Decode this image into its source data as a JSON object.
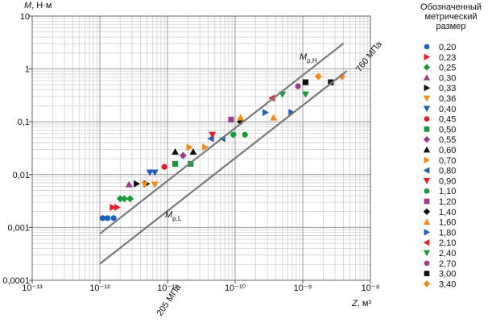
{
  "chart_data": {
    "type": "scatter",
    "xlabel": {
      "symbol": "Z",
      "unit": ", м³"
    },
    "ylabel": {
      "symbol": "M",
      "unit": ", Н·м"
    },
    "xscale": "log",
    "yscale": "log",
    "grid": true,
    "minor_grid": true,
    "xlim": [
      1e-13,
      1e-08
    ],
    "ylim": [
      0.0001,
      10
    ],
    "xticks": [
      {
        "value": 1e-13,
        "label": "10⁻¹³"
      },
      {
        "value": 1e-12,
        "label": "10⁻¹²"
      },
      {
        "value": 1e-11,
        "label": "10⁻¹¹"
      },
      {
        "value": 1e-10,
        "label": "10⁻¹⁰"
      },
      {
        "value": 1e-09,
        "label": "10⁻⁹"
      },
      {
        "value": 1e-08,
        "label": "10⁻⁸"
      }
    ],
    "yticks": [
      {
        "value": 0.0001,
        "label": "0,0001"
      },
      {
        "value": 0.001,
        "label": "0,001"
      },
      {
        "value": 0.01,
        "label": "0,01"
      },
      {
        "value": 0.1,
        "label": "0,1"
      },
      1,
      10
    ],
    "legend_title": [
      "Обозначенный",
      "метрический",
      "размер"
    ],
    "legend_position": "right",
    "annotations": [
      {
        "text": "M",
        "sub": "р,Н"
      },
      {
        "text": "M",
        "sub": "р,L"
      },
      {
        "text": "760 МПа"
      },
      {
        "text": "205 МПа"
      }
    ],
    "series": [
      {
        "name": "0,20",
        "color": "#1f5fb4",
        "marker": "circle",
        "x": [
          1.1e-12,
          1.3e-12,
          1.6e-12
        ],
        "values": [
          0.0015,
          0.0015,
          0.0015
        ]
      },
      {
        "name": "0,23",
        "color": "#e0202a",
        "marker": "triangle-right",
        "x": [
          1.55e-12,
          1.8e-12
        ],
        "values": [
          0.0024,
          0.0024
        ]
      },
      {
        "name": "0,25",
        "color": "#1a9a3a",
        "marker": "diamond",
        "x": [
          2e-12,
          2.3e-12,
          2.8e-12
        ],
        "values": [
          0.0035,
          0.0035,
          0.0035
        ]
      },
      {
        "name": "0,30",
        "color": "#9a3d8e",
        "marker": "triangle-up",
        "x": [
          2.7e-12
        ],
        "values": [
          0.0065
        ]
      },
      {
        "name": "0,33",
        "color": "#111111",
        "marker": "triangle-right",
        "x": [
          3.5e-12,
          4.9e-12
        ],
        "values": [
          0.0067,
          0.0067
        ]
      },
      {
        "name": "0,36",
        "color": "#f08a1c",
        "marker": "triangle-down",
        "x": [
          4.6e-12,
          6.5e-12
        ],
        "values": [
          0.0065,
          0.0065
        ]
      },
      {
        "name": "0,40",
        "color": "#1f5fb4",
        "marker": "triangle-down",
        "x": [
          5.5e-12,
          6.5e-12
        ],
        "values": [
          0.011,
          0.011
        ]
      },
      {
        "name": "0,45",
        "color": "#e0202a",
        "marker": "circle",
        "x": [
          9e-12
        ],
        "values": [
          0.014
        ]
      },
      {
        "name": "0,50",
        "color": "#1a9a3a",
        "marker": "square",
        "x": [
          1.3e-11,
          2.2e-11
        ],
        "values": [
          0.016,
          0.016
        ]
      },
      {
        "name": "0,55",
        "color": "#9a3d8e",
        "marker": "diamond",
        "x": [
          1.7e-11
        ],
        "values": [
          0.023
        ]
      },
      {
        "name": "0,60",
        "color": "#111111",
        "marker": "triangle-up",
        "x": [
          1.3e-11,
          2.4e-11
        ],
        "values": [
          0.027,
          0.027
        ]
      },
      {
        "name": "0,70",
        "color": "#f08a1c",
        "marker": "triangle-right",
        "x": [
          2.1e-11,
          3.6e-11
        ],
        "values": [
          0.033,
          0.033
        ]
      },
      {
        "name": "0,80",
        "color": "#1f5fb4",
        "marker": "triangle-left",
        "x": [
          4.4e-11,
          6.5e-11
        ],
        "values": [
          0.048,
          0.048
        ]
      },
      {
        "name": "0,90",
        "color": "#e0202a",
        "marker": "triangle-down",
        "x": [
          4.6e-11
        ],
        "values": [
          0.057
        ]
      },
      {
        "name": "1,10",
        "color": "#1a9a3a",
        "marker": "circle",
        "x": [
          9.4e-11,
          1.4e-10
        ],
        "values": [
          0.057,
          0.057
        ]
      },
      {
        "name": "1,20",
        "color": "#9a3d8e",
        "marker": "square",
        "x": [
          8.7e-11
        ],
        "values": [
          0.11
        ]
      },
      {
        "name": "1,40",
        "color": "#111111",
        "marker": "diamond",
        "x": [
          1.2e-10
        ],
        "values": [
          0.1
        ]
      },
      {
        "name": "1,60",
        "color": "#f08a1c",
        "marker": "triangle-up",
        "x": [
          1.2e-10,
          3.7e-10
        ],
        "values": [
          0.12,
          0.12
        ]
      },
      {
        "name": "1,80",
        "color": "#1f5fb4",
        "marker": "triangle-right",
        "x": [
          2.8e-10,
          6.8e-10
        ],
        "values": [
          0.15,
          0.15
        ]
      },
      {
        "name": "2,10",
        "color": "#e0202a",
        "marker": "triangle-left",
        "x": [
          3.5e-10
        ],
        "values": [
          0.28
        ]
      },
      {
        "name": "2,40",
        "color": "#1a9a3a",
        "marker": "triangle-down",
        "x": [
          5e-10,
          1.1e-09
        ],
        "values": [
          0.33,
          0.33
        ]
      },
      {
        "name": "2,70",
        "color": "#9a3d8e",
        "marker": "circle",
        "x": [
          8.5e-10
        ],
        "values": [
          0.47
        ]
      },
      {
        "name": "3,00",
        "color": "#111111",
        "marker": "square",
        "x": [
          1.1e-09,
          2.6e-09
        ],
        "values": [
          0.56,
          0.56
        ]
      },
      {
        "name": "3,40",
        "color": "#f08a1c",
        "marker": "diamond",
        "x": [
          1.7e-09,
          3.8e-09
        ],
        "values": [
          0.72,
          0.72
        ]
      },
      {
        "type": "line",
        "color": "#7a7a7a",
        "x": [
          1e-12,
          4e-09
        ],
        "values": [
          0.00076,
          3.04
        ]
      },
      {
        "type": "line",
        "color": "#7a7a7a",
        "x": [
          1e-12,
          4.5e-09
        ],
        "values": [
          0.000205,
          0.92
        ]
      }
    ]
  }
}
